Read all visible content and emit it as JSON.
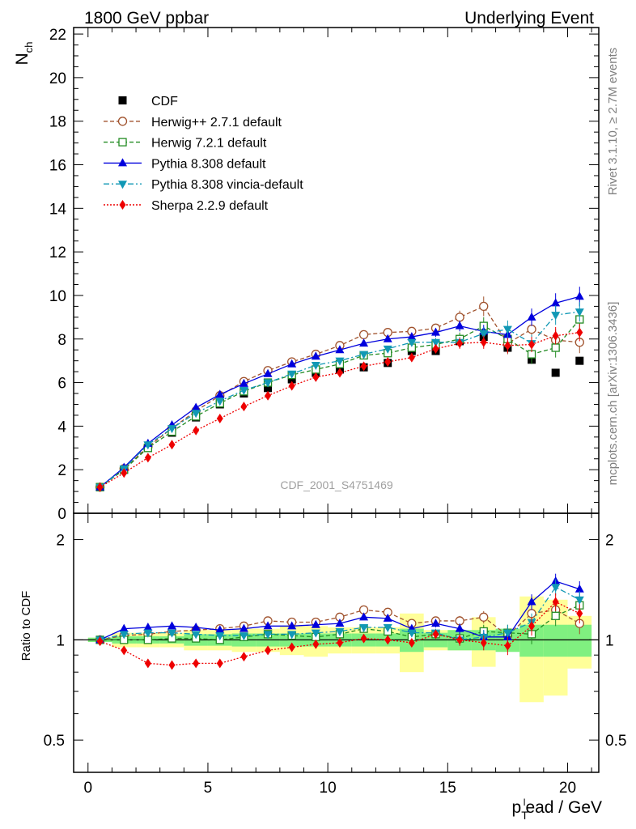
{
  "header": {
    "left_label": "1800 GeV ppbar",
    "right_label": "Underlying Event"
  },
  "side_text": {
    "rivet": "Rivet 3.1.10, ≥ 2.7M events",
    "mcplots": "mcplots.cern.ch [arXiv:1306.3436]"
  },
  "analysis_label": "CDF_2001_S4751469",
  "colors": {
    "CDF": "#000000",
    "Herwig++": "#a0522d",
    "Herwig7": "#228b22",
    "Pythia": "#0000dd",
    "Vincia": "#1198b5",
    "Sherpa": "#ee0000",
    "band_inner": "#80f080",
    "band_outer": "#ffff99"
  },
  "chart_data": [
    {
      "type": "line",
      "panel": "main",
      "ylabel": "N_ch",
      "ylim": [
        0,
        22.3
      ],
      "xlim": [
        -0.6,
        21.3
      ],
      "y_ticks": [
        0,
        2,
        4,
        6,
        8,
        10,
        12,
        14,
        16,
        18,
        20,
        22
      ],
      "legend_position": "top-left",
      "x": [
        0.5,
        1.5,
        2.5,
        3.5,
        4.5,
        5.5,
        6.5,
        7.5,
        8.5,
        9.5,
        10.5,
        11.5,
        12.5,
        13.5,
        14.5,
        15.5,
        16.5,
        17.5,
        18.5,
        19.5,
        20.5
      ],
      "series": [
        {
          "name": "CDF",
          "marker": "square",
          "line": "none",
          "values": [
            1.2,
            2.0,
            3.0,
            3.7,
            4.4,
            5.0,
            5.5,
            5.75,
            6.15,
            6.45,
            6.6,
            6.7,
            6.9,
            7.45,
            7.45,
            7.9,
            8.1,
            7.6,
            7.05,
            6.45,
            7.0
          ]
        },
        {
          "name": "Herwig++ 2.7.1 default",
          "marker": "circle-open",
          "line": "dashed",
          "values": [
            1.2,
            2.05,
            3.05,
            3.9,
            4.7,
            5.4,
            6.05,
            6.55,
            6.95,
            7.3,
            7.7,
            8.2,
            8.3,
            8.35,
            8.5,
            9.0,
            9.5,
            7.8,
            8.45,
            7.95,
            7.85
          ],
          "errors": [
            0.03,
            0.03,
            0.04,
            0.05,
            0.05,
            0.06,
            0.06,
            0.07,
            0.08,
            0.08,
            0.09,
            0.1,
            0.12,
            0.15,
            0.2,
            0.3,
            0.45,
            0.5,
            0.5,
            0.5,
            0.5
          ]
        },
        {
          "name": "Herwig 7.2.1 default",
          "marker": "square-open",
          "line": "dashed",
          "values": [
            1.2,
            2.0,
            3.0,
            3.75,
            4.45,
            5.05,
            5.6,
            6.0,
            6.35,
            6.6,
            6.85,
            7.25,
            7.35,
            7.6,
            7.75,
            8.0,
            8.6,
            8.0,
            7.3,
            7.6,
            8.9
          ],
          "errors": [
            0.03,
            0.03,
            0.04,
            0.05,
            0.05,
            0.06,
            0.06,
            0.07,
            0.08,
            0.08,
            0.09,
            0.1,
            0.12,
            0.15,
            0.2,
            0.3,
            0.4,
            0.45,
            0.45,
            0.45,
            0.45
          ]
        },
        {
          "name": "Pythia 8.308 default",
          "marker": "triangle-up",
          "line": "solid",
          "values": [
            1.2,
            2.1,
            3.2,
            4.05,
            4.85,
            5.45,
            5.95,
            6.4,
            6.85,
            7.2,
            7.5,
            7.8,
            8.0,
            8.1,
            8.3,
            8.6,
            8.35,
            8.2,
            9.0,
            9.65,
            9.95
          ],
          "errors": [
            0.03,
            0.03,
            0.04,
            0.05,
            0.05,
            0.06,
            0.06,
            0.07,
            0.08,
            0.08,
            0.09,
            0.1,
            0.12,
            0.15,
            0.2,
            0.25,
            0.3,
            0.4,
            0.4,
            0.45,
            0.45
          ]
        },
        {
          "name": "Pythia 8.308 vincia-default",
          "marker": "triangle-down",
          "line": "dashdot",
          "values": [
            1.2,
            2.05,
            3.15,
            3.9,
            4.6,
            5.15,
            5.65,
            6.0,
            6.4,
            6.8,
            7.0,
            7.3,
            7.55,
            7.85,
            7.85,
            7.85,
            8.25,
            8.45,
            7.8,
            9.1,
            9.25
          ],
          "errors": [
            0.03,
            0.03,
            0.04,
            0.05,
            0.05,
            0.06,
            0.06,
            0.07,
            0.08,
            0.08,
            0.09,
            0.1,
            0.12,
            0.15,
            0.2,
            0.25,
            0.3,
            0.4,
            0.4,
            0.45,
            0.45
          ]
        },
        {
          "name": "Sherpa 2.2.9 default",
          "marker": "diamond",
          "line": "dotted",
          "values": [
            1.2,
            1.85,
            2.55,
            3.15,
            3.8,
            4.35,
            4.9,
            5.4,
            5.85,
            6.25,
            6.45,
            6.75,
            6.95,
            7.15,
            7.55,
            7.8,
            7.85,
            7.7,
            7.75,
            8.15,
            8.3
          ],
          "errors": [
            0.03,
            0.03,
            0.04,
            0.05,
            0.05,
            0.06,
            0.06,
            0.07,
            0.08,
            0.08,
            0.09,
            0.1,
            0.12,
            0.15,
            0.2,
            0.25,
            0.3,
            0.35,
            0.35,
            0.4,
            0.4
          ]
        }
      ]
    },
    {
      "type": "line",
      "panel": "ratio",
      "xlabel": "p_T^lead / GeV",
      "ylabel": "Ratio to CDF",
      "ylim": [
        0.4,
        2.4
      ],
      "log_y": true,
      "xlim": [
        -0.6,
        21.3
      ],
      "x_ticks": [
        0,
        5,
        10,
        15,
        20
      ],
      "y_ticks": [
        0.5,
        1,
        2
      ],
      "reference_line": 1,
      "x_edges": [
        0,
        1,
        2,
        3,
        4,
        5,
        6,
        7,
        8,
        9,
        10,
        11,
        12,
        13,
        14,
        15,
        16,
        17,
        18,
        19,
        20,
        21
      ],
      "band_inner": {
        "low": [
          0.985,
          0.975,
          0.975,
          0.975,
          0.96,
          0.96,
          0.955,
          0.955,
          0.955,
          0.955,
          0.955,
          0.955,
          0.955,
          0.92,
          0.95,
          0.93,
          0.93,
          0.92,
          0.89,
          0.89,
          0.89
        ],
        "high": [
          1.015,
          1.025,
          1.025,
          1.025,
          1.04,
          1.04,
          1.045,
          1.045,
          1.045,
          1.045,
          1.045,
          1.045,
          1.045,
          1.08,
          1.05,
          1.07,
          1.07,
          1.08,
          1.11,
          1.11,
          1.11
        ]
      },
      "band_outer": {
        "low": [
          0.985,
          0.95,
          0.95,
          0.95,
          0.93,
          0.93,
          0.92,
          0.92,
          0.9,
          0.89,
          0.91,
          0.91,
          0.91,
          0.8,
          0.93,
          0.93,
          0.83,
          0.93,
          0.65,
          0.68,
          0.82
        ],
        "high": [
          1.015,
          1.05,
          1.05,
          1.05,
          1.07,
          1.07,
          1.08,
          1.08,
          1.1,
          1.1,
          1.09,
          1.09,
          1.09,
          1.2,
          1.07,
          1.07,
          1.17,
          1.07,
          1.35,
          1.32,
          1.18
        ]
      },
      "x": [
        0.5,
        1.5,
        2.5,
        3.5,
        4.5,
        5.5,
        6.5,
        7.5,
        8.5,
        9.5,
        10.5,
        11.5,
        12.5,
        13.5,
        14.5,
        15.5,
        16.5,
        17.5,
        18.5,
        19.5,
        20.5
      ],
      "series": [
        {
          "name": "Herwig++ 2.7.1 default",
          "values": [
            1.0,
            1.03,
            1.04,
            1.06,
            1.07,
            1.08,
            1.1,
            1.14,
            1.13,
            1.13,
            1.17,
            1.23,
            1.21,
            1.12,
            1.14,
            1.14,
            1.17,
            1.03,
            1.2,
            1.23,
            1.12
          ],
          "errors": [
            0.01,
            0.01,
            0.01,
            0.01,
            0.01,
            0.01,
            0.01,
            0.01,
            0.01,
            0.01,
            0.01,
            0.015,
            0.02,
            0.02,
            0.03,
            0.04,
            0.05,
            0.06,
            0.07,
            0.08,
            0.08
          ]
        },
        {
          "name": "Herwig 7.2.1 default",
          "values": [
            1.0,
            1.0,
            1.0,
            1.01,
            1.01,
            1.0,
            1.02,
            1.04,
            1.03,
            1.02,
            1.04,
            1.08,
            1.06,
            1.02,
            1.04,
            1.01,
            1.06,
            1.05,
            1.04,
            1.18,
            1.27
          ],
          "errors": [
            0.01,
            0.01,
            0.01,
            0.01,
            0.01,
            0.01,
            0.01,
            0.01,
            0.01,
            0.01,
            0.01,
            0.015,
            0.02,
            0.02,
            0.03,
            0.04,
            0.05,
            0.06,
            0.07,
            0.08,
            0.08
          ]
        },
        {
          "name": "Pythia 8.308 default",
          "values": [
            1.0,
            1.08,
            1.09,
            1.1,
            1.09,
            1.07,
            1.08,
            1.1,
            1.1,
            1.11,
            1.12,
            1.17,
            1.16,
            1.08,
            1.12,
            1.08,
            1.02,
            1.02,
            1.3,
            1.5,
            1.42
          ],
          "errors": [
            0.01,
            0.01,
            0.01,
            0.01,
            0.01,
            0.01,
            0.01,
            0.01,
            0.01,
            0.01,
            0.01,
            0.015,
            0.02,
            0.02,
            0.03,
            0.04,
            0.05,
            0.06,
            0.07,
            0.08,
            0.08
          ]
        },
        {
          "name": "Pythia 8.308 vincia-default",
          "values": [
            1.0,
            1.04,
            1.05,
            1.05,
            1.04,
            1.03,
            1.03,
            1.04,
            1.04,
            1.05,
            1.06,
            1.09,
            1.09,
            1.05,
            1.05,
            1.0,
            1.02,
            1.05,
            1.13,
            1.44,
            1.32
          ],
          "errors": [
            0.01,
            0.01,
            0.01,
            0.01,
            0.01,
            0.01,
            0.01,
            0.01,
            0.01,
            0.01,
            0.01,
            0.015,
            0.02,
            0.02,
            0.03,
            0.04,
            0.05,
            0.06,
            0.07,
            0.08,
            0.08
          ]
        },
        {
          "name": "Sherpa 2.2.9 default",
          "values": [
            0.99,
            0.93,
            0.85,
            0.84,
            0.85,
            0.85,
            0.89,
            0.93,
            0.95,
            0.97,
            0.98,
            1.01,
            1.0,
            0.98,
            1.04,
            1.0,
            0.98,
            0.96,
            1.1,
            1.3,
            1.2
          ],
          "errors": [
            0.01,
            0.01,
            0.01,
            0.01,
            0.01,
            0.01,
            0.01,
            0.01,
            0.01,
            0.01,
            0.01,
            0.015,
            0.02,
            0.02,
            0.03,
            0.04,
            0.05,
            0.06,
            0.07,
            0.08,
            0.08
          ]
        }
      ]
    }
  ]
}
